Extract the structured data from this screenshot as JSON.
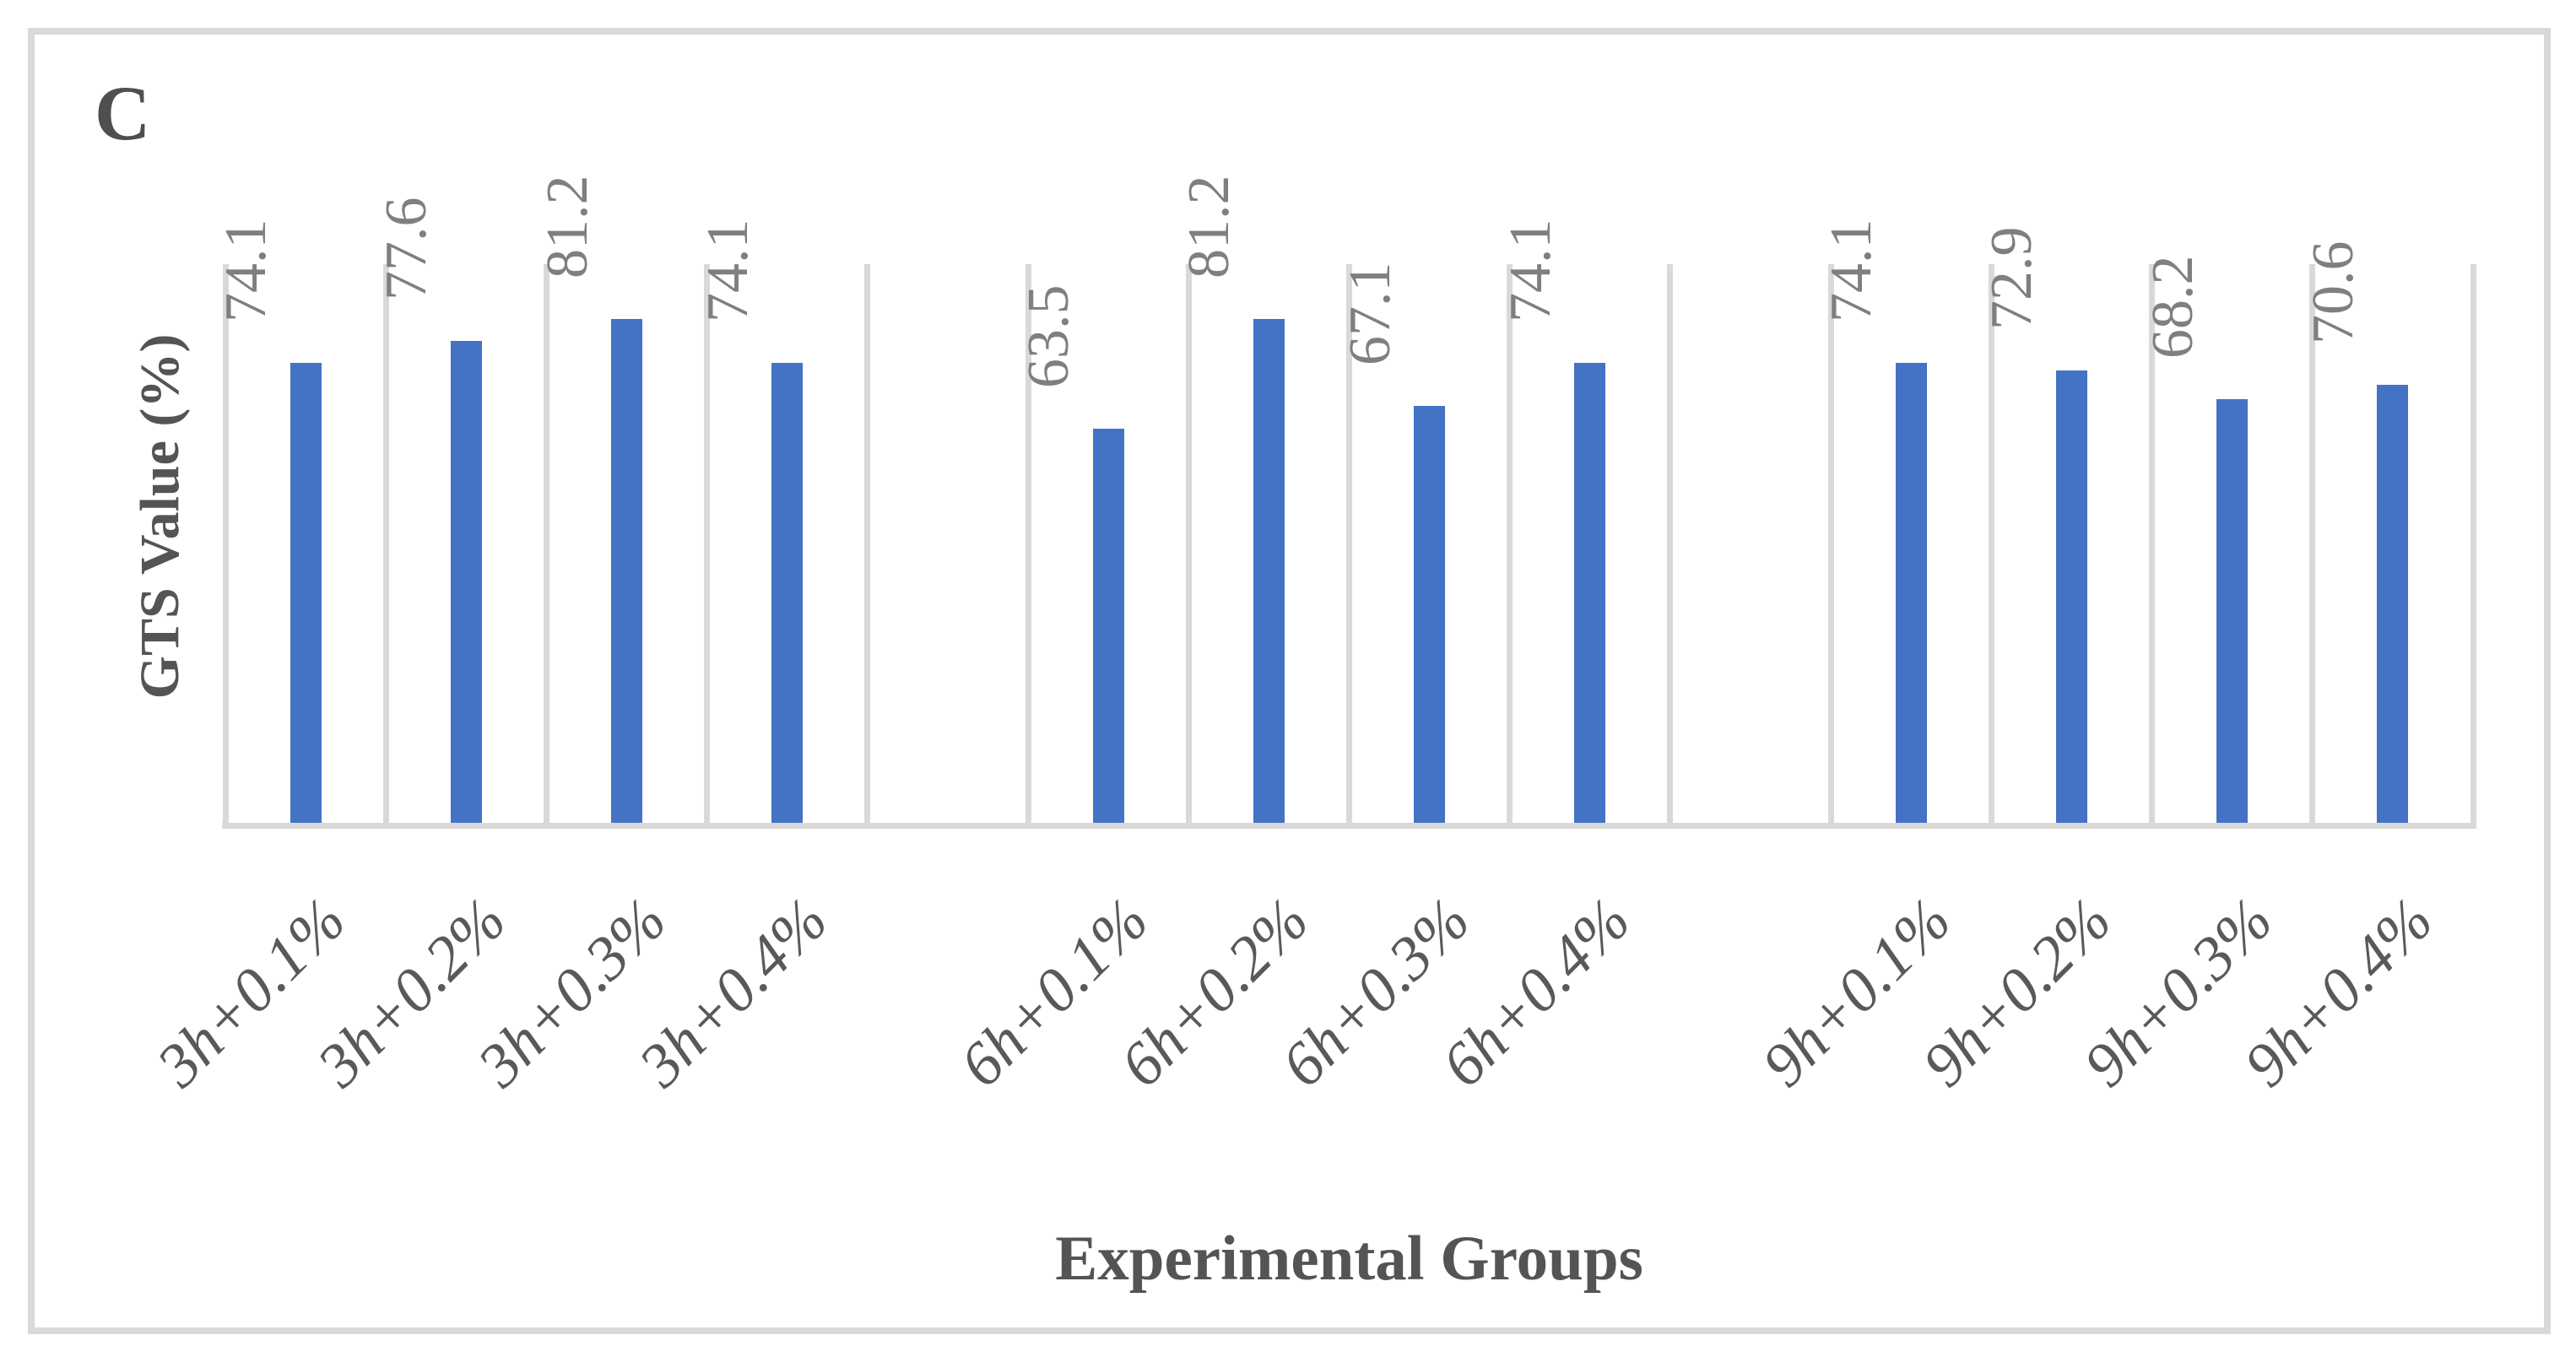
{
  "panel_label": "C",
  "chart_data": {
    "type": "bar",
    "title": "",
    "xlabel": "Experimental Groups",
    "ylabel": "GTS Value (%)",
    "ylim": [
      0,
      90
    ],
    "legend_position": "none",
    "grid": "vertical category boundary gridlines",
    "categories": [
      "3h+0.1%",
      "3h+0.2%",
      "3h+0.3%",
      "3h+0.4%",
      "6h+0.1%",
      "6h+0.2%",
      "6h+0.3%",
      "6h+0.4%",
      "9h+0.1%",
      "9h+0.2%",
      "9h+0.3%",
      "9h+0.4%"
    ],
    "values": [
      74.1,
      77.6,
      81.2,
      74.1,
      63.5,
      81.2,
      67.1,
      74.1,
      74.1,
      72.9,
      68.2,
      70.6
    ],
    "value_labels": [
      "74.1",
      "77.6",
      "81.2",
      "74.1",
      "63.5",
      "81.2",
      "67.1",
      "74.1",
      "74.1",
      "72.9",
      "68.2",
      "70.6"
    ],
    "group_size": 4,
    "colors": {
      "bar": "#4472C4",
      "gridline": "#D9D9D9",
      "value_label": "#7F7F7F",
      "tick_label": "#595959",
      "axis_title": "#545454",
      "panel_label": "#4F4F4F"
    }
  }
}
